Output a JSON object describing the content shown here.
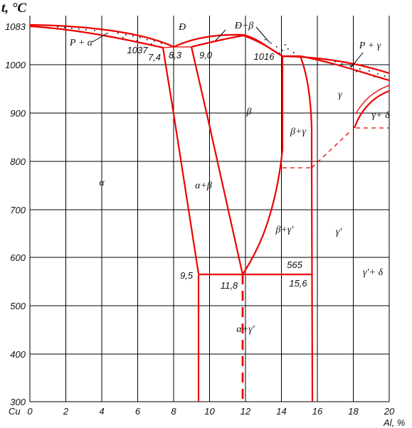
{
  "diagram": {
    "y_axis_title": "t, °C",
    "x_axis_title": "Al, %",
    "x_axis_origin_label": "Cu",
    "x_ticks": [
      "0",
      "2",
      "4",
      "6",
      "8",
      "10",
      "12",
      "14",
      "16",
      "18",
      "20"
    ],
    "y_ticks": [
      "1083",
      "1000",
      "900",
      "800",
      "700",
      "600",
      "500",
      "400",
      "300"
    ],
    "phase_labels": {
      "alpha": "α",
      "beta": "β",
      "gamma": "γ",
      "alpha_beta": "α+β",
      "alpha_gamma_prime": "α+γ′",
      "beta_gamma": "β+γ",
      "beta_gamma_prime": "β+γ′",
      "gamma_prime": "γ′",
      "gamma_delta": "γ+ δ",
      "gamma_prime_delta": "γ′+ δ",
      "liquid_alpha": "Р + α",
      "liquid_gamma": "Р + γ",
      "liquid_beta": "Ð+β",
      "liquid": "Ð"
    },
    "point_labels": {
      "t1037": "1037",
      "c74": "7,4",
      "c83": "8,3",
      "c90": "9,0",
      "t1016": "1016",
      "c95": "9,5",
      "c118": "11,8",
      "t565": "565",
      "c156": "15,6"
    }
  }
}
